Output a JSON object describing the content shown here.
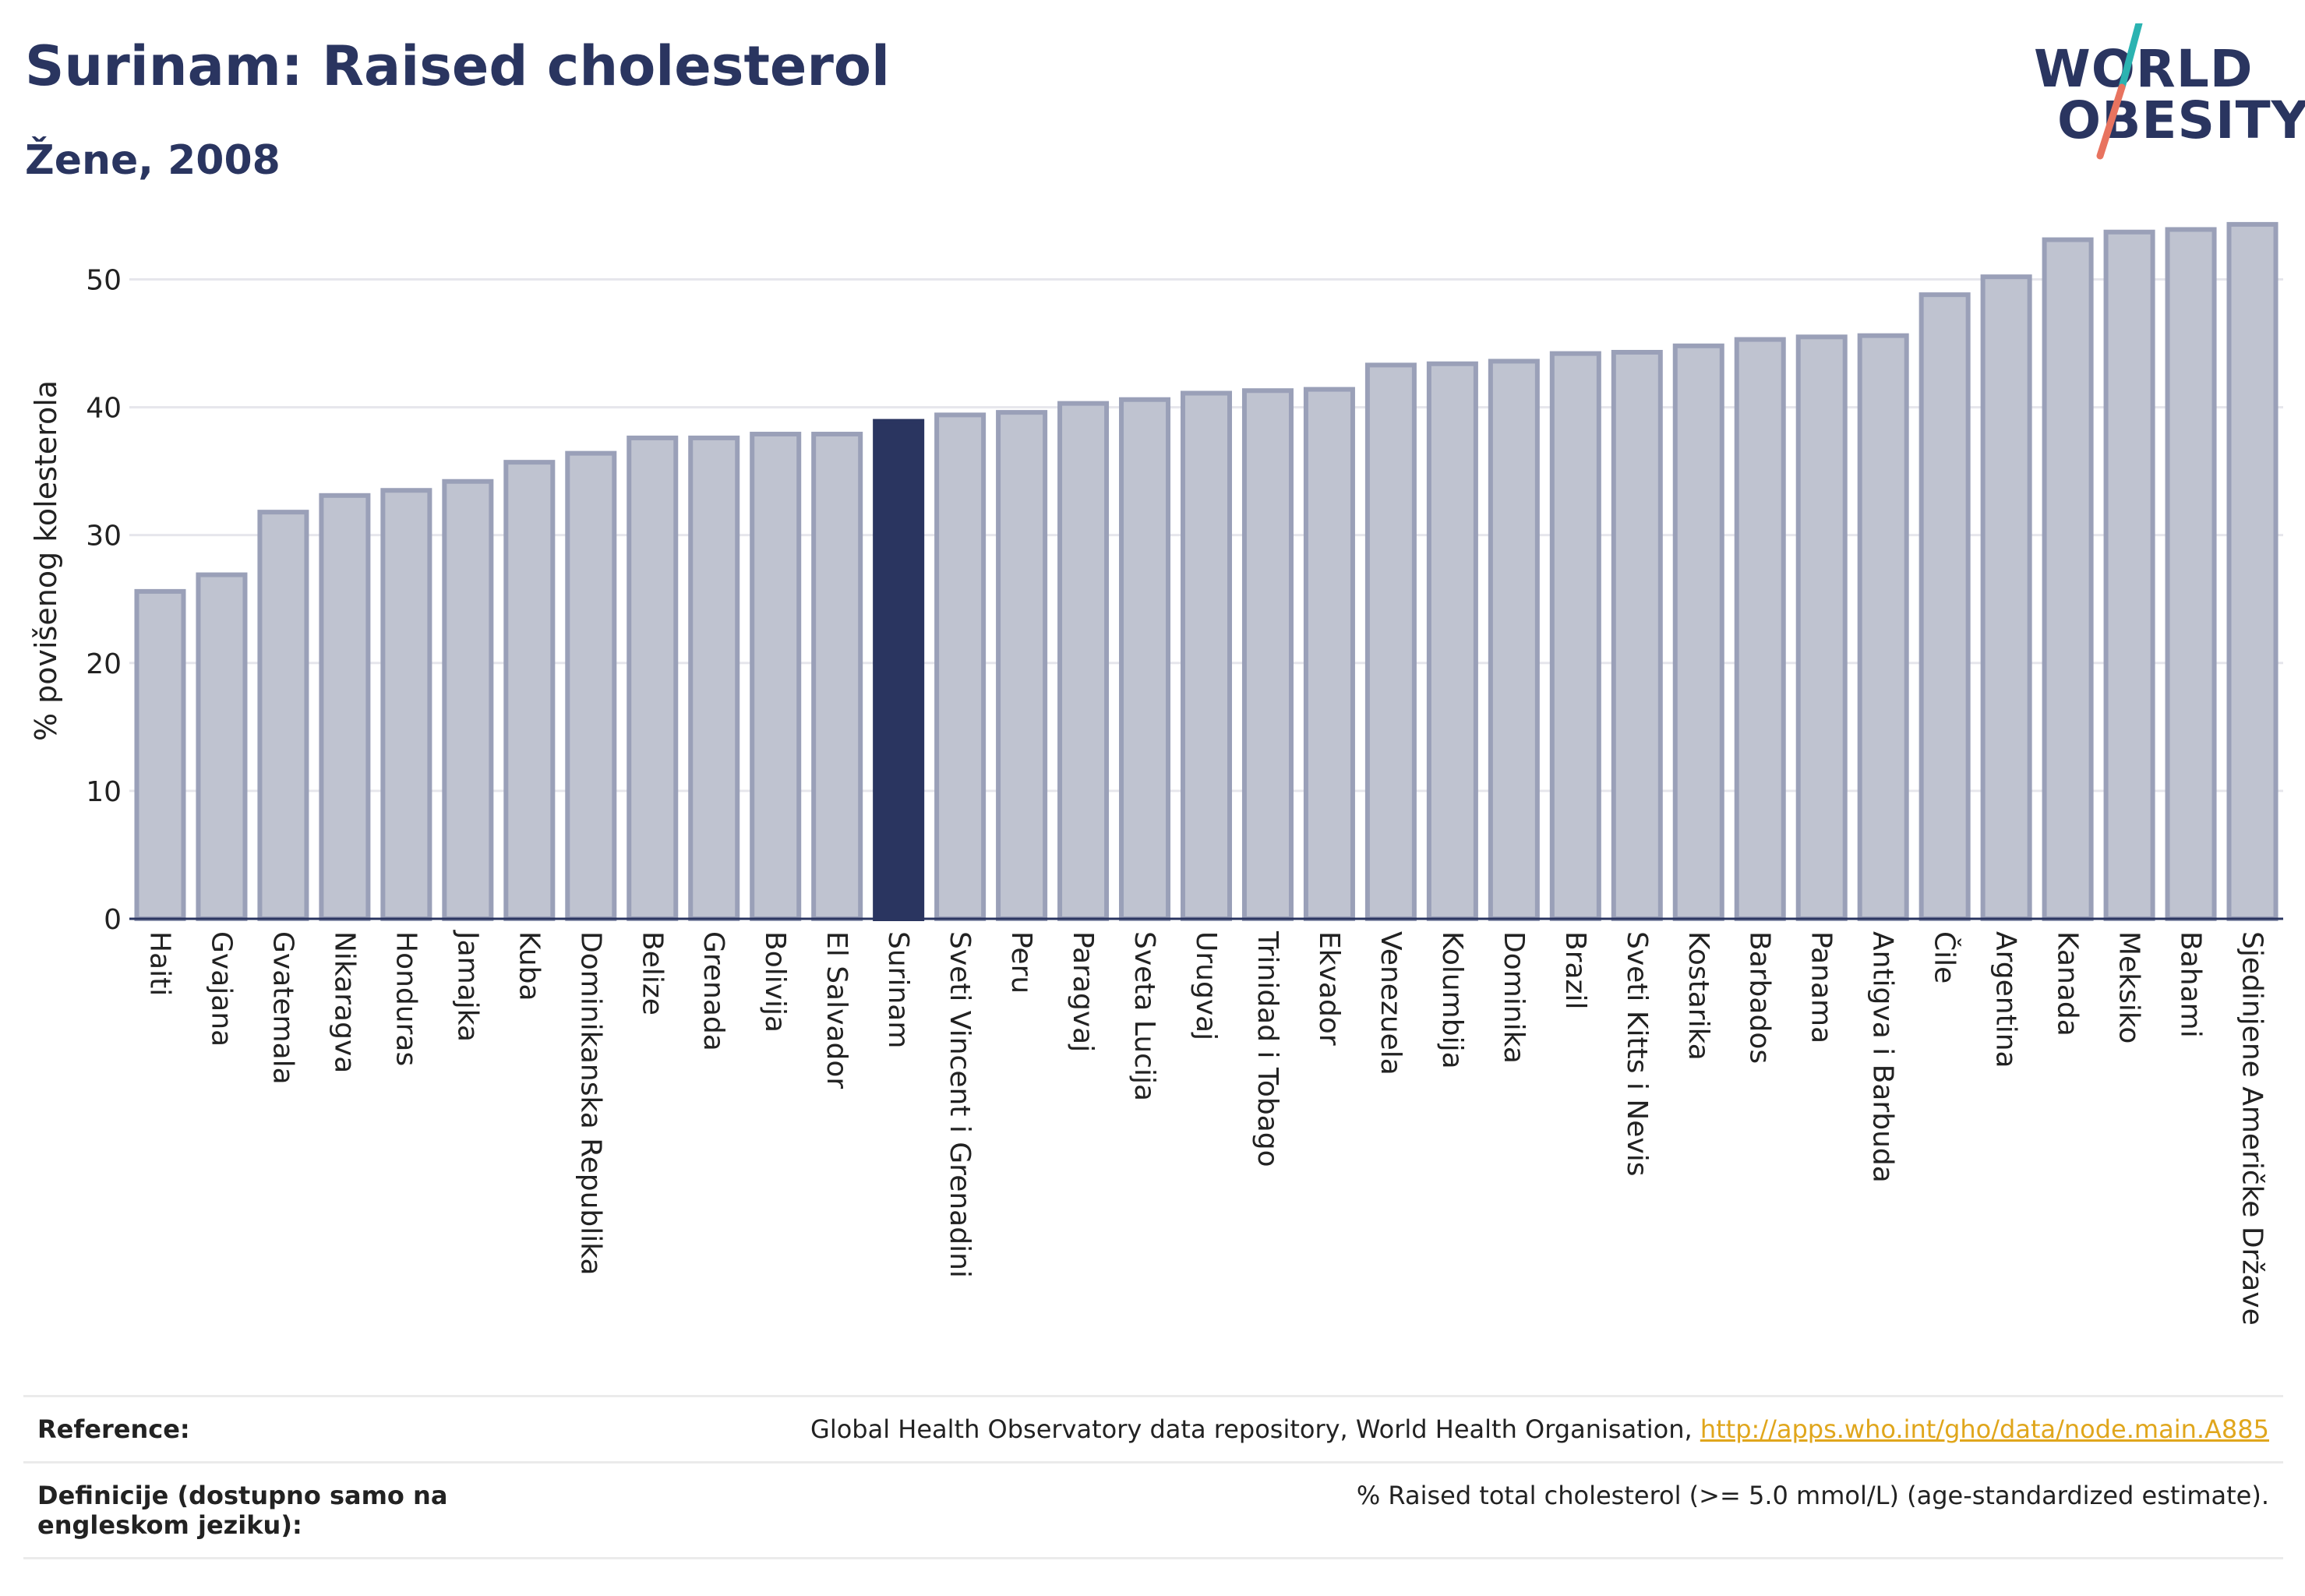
{
  "header": {
    "title": "Surinam: Raised cholesterol",
    "subtitle": "Žene, 2008"
  },
  "logo": {
    "line1": "WORLD",
    "line2": "OBESITY"
  },
  "colors": {
    "highlight_bar": "#2a3560",
    "bar_fill": "#bfc3d0",
    "bar_stroke": "#9aa0b8",
    "logo_slash_teal": "#2bb3b1",
    "logo_slash_coral": "#e8735f",
    "link": "#e0a61c"
  },
  "chart_data": {
    "type": "bar",
    "ylabel": "% povišenog kolesterola",
    "xlabel": "",
    "ylim": [
      0,
      56
    ],
    "yticks": [
      0,
      10,
      20,
      30,
      40,
      50
    ],
    "grid": true,
    "highlight": "Surinam",
    "categories": [
      "Haiti",
      "Gvajana",
      "Gvatemala",
      "Nikaragva",
      "Honduras",
      "Jamajka",
      "Kuba",
      "Dominikanska Republika",
      "Belize",
      "Grenada",
      "Bolivija",
      "El Salvador",
      "Surinam",
      "Sveti Vincent i Grenadini",
      "Peru",
      "Paragvaj",
      "Sveta Lucija",
      "Urugvaj",
      "Trinidad i Tobago",
      "Ekvador",
      "Venezuela",
      "Kolumbija",
      "Dominika",
      "Brazil",
      "Sveti Kitts i Nevis",
      "Kostarika",
      "Barbados",
      "Panama",
      "Antigva i Barbuda",
      "Čile",
      "Argentina",
      "Kanada",
      "Meksiko",
      "Bahami",
      "Sjedinjene Američke Države"
    ],
    "values": [
      25.6,
      26.9,
      31.8,
      33.1,
      33.5,
      34.2,
      35.7,
      36.4,
      37.6,
      37.6,
      37.9,
      37.9,
      38.9,
      39.4,
      39.6,
      40.3,
      40.6,
      41.1,
      41.3,
      41.4,
      43.3,
      43.4,
      43.6,
      44.2,
      44.3,
      44.8,
      45.3,
      45.5,
      45.6,
      48.8,
      50.2,
      53.1,
      53.7,
      53.9,
      54.3
    ]
  },
  "footer": {
    "reference_label": "Reference:",
    "reference_text": "Global Health Observatory data repository, World Health Organisation, ",
    "reference_link": "http://apps.who.int/gho/data/node.main.A885",
    "definition_label": "Definicije (dostupno samo na engleskom jeziku):",
    "definition_text": "% Raised total cholesterol (>= 5.0 mmol/L) (age-standardized estimate)."
  }
}
